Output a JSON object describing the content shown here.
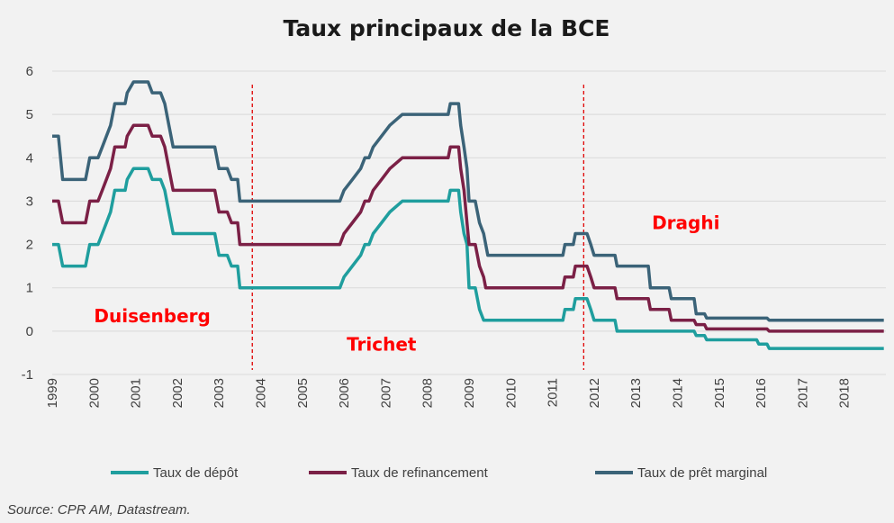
{
  "chart_data": {
    "type": "line",
    "title": "Taux principaux de la BCE",
    "source": "Source: CPR AM, Datastream.",
    "ylim": [
      -1,
      6
    ],
    "yticks": [
      -1,
      0,
      1,
      2,
      3,
      4,
      5,
      6
    ],
    "xlim": [
      1999,
      2019
    ],
    "xticks": [
      "1999",
      "2000",
      "2001",
      "2002",
      "2003",
      "2004",
      "2005",
      "2006",
      "2007",
      "2008",
      "2009",
      "2010",
      "2011",
      "2012",
      "2013",
      "2014",
      "2015",
      "2016",
      "2017",
      "2018"
    ],
    "grid": true,
    "legend_position": "bottom",
    "series": [
      {
        "name": "Taux de dépôt",
        "color": "#1f9e9e",
        "points": [
          [
            1999.0,
            2.0
          ],
          [
            1999.15,
            2.0
          ],
          [
            1999.25,
            1.5
          ],
          [
            1999.8,
            1.5
          ],
          [
            1999.9,
            2.0
          ],
          [
            2000.1,
            2.0
          ],
          [
            2000.2,
            2.25
          ],
          [
            2000.3,
            2.5
          ],
          [
            2000.4,
            2.75
          ],
          [
            2000.5,
            3.25
          ],
          [
            2000.75,
            3.25
          ],
          [
            2000.8,
            3.5
          ],
          [
            2000.95,
            3.75
          ],
          [
            2001.3,
            3.75
          ],
          [
            2001.4,
            3.5
          ],
          [
            2001.6,
            3.5
          ],
          [
            2001.7,
            3.25
          ],
          [
            2001.8,
            2.75
          ],
          [
            2001.9,
            2.25
          ],
          [
            2002.9,
            2.25
          ],
          [
            2003.0,
            1.75
          ],
          [
            2003.2,
            1.75
          ],
          [
            2003.3,
            1.5
          ],
          [
            2003.45,
            1.5
          ],
          [
            2003.5,
            1.0
          ],
          [
            2005.9,
            1.0
          ],
          [
            2006.0,
            1.25
          ],
          [
            2006.2,
            1.5
          ],
          [
            2006.4,
            1.75
          ],
          [
            2006.5,
            2.0
          ],
          [
            2006.6,
            2.0
          ],
          [
            2006.7,
            2.25
          ],
          [
            2006.9,
            2.5
          ],
          [
            2007.1,
            2.75
          ],
          [
            2007.4,
            3.0
          ],
          [
            2008.5,
            3.0
          ],
          [
            2008.55,
            3.25
          ],
          [
            2008.75,
            3.25
          ],
          [
            2008.8,
            2.75
          ],
          [
            2008.88,
            2.25
          ],
          [
            2008.95,
            2.0
          ],
          [
            2009.0,
            1.0
          ],
          [
            2009.15,
            1.0
          ],
          [
            2009.25,
            0.5
          ],
          [
            2009.35,
            0.25
          ],
          [
            2011.25,
            0.25
          ],
          [
            2011.3,
            0.5
          ],
          [
            2011.5,
            0.5
          ],
          [
            2011.55,
            0.75
          ],
          [
            2011.83,
            0.75
          ],
          [
            2011.92,
            0.5
          ],
          [
            2012.0,
            0.25
          ],
          [
            2012.5,
            0.25
          ],
          [
            2012.55,
            0.0
          ],
          [
            2014.4,
            0.0
          ],
          [
            2014.45,
            -0.1
          ],
          [
            2014.65,
            -0.1
          ],
          [
            2014.7,
            -0.2
          ],
          [
            2015.9,
            -0.2
          ],
          [
            2015.95,
            -0.3
          ],
          [
            2016.15,
            -0.3
          ],
          [
            2016.2,
            -0.4
          ],
          [
            2018.95,
            -0.4
          ]
        ]
      },
      {
        "name": "Taux de refinancement",
        "color": "#7b2046",
        "points": [
          [
            1999.0,
            3.0
          ],
          [
            1999.15,
            3.0
          ],
          [
            1999.25,
            2.5
          ],
          [
            1999.8,
            2.5
          ],
          [
            1999.9,
            3.0
          ],
          [
            2000.1,
            3.0
          ],
          [
            2000.2,
            3.25
          ],
          [
            2000.3,
            3.5
          ],
          [
            2000.4,
            3.75
          ],
          [
            2000.5,
            4.25
          ],
          [
            2000.75,
            4.25
          ],
          [
            2000.8,
            4.5
          ],
          [
            2000.95,
            4.75
          ],
          [
            2001.3,
            4.75
          ],
          [
            2001.4,
            4.5
          ],
          [
            2001.6,
            4.5
          ],
          [
            2001.7,
            4.25
          ],
          [
            2001.8,
            3.75
          ],
          [
            2001.9,
            3.25
          ],
          [
            2002.9,
            3.25
          ],
          [
            2003.0,
            2.75
          ],
          [
            2003.2,
            2.75
          ],
          [
            2003.3,
            2.5
          ],
          [
            2003.45,
            2.5
          ],
          [
            2003.5,
            2.0
          ],
          [
            2005.9,
            2.0
          ],
          [
            2006.0,
            2.25
          ],
          [
            2006.2,
            2.5
          ],
          [
            2006.4,
            2.75
          ],
          [
            2006.5,
            3.0
          ],
          [
            2006.6,
            3.0
          ],
          [
            2006.7,
            3.25
          ],
          [
            2006.9,
            3.5
          ],
          [
            2007.1,
            3.75
          ],
          [
            2007.4,
            4.0
          ],
          [
            2008.5,
            4.0
          ],
          [
            2008.55,
            4.25
          ],
          [
            2008.75,
            4.25
          ],
          [
            2008.8,
            3.75
          ],
          [
            2008.88,
            3.25
          ],
          [
            2008.95,
            2.5
          ],
          [
            2009.0,
            2.0
          ],
          [
            2009.15,
            2.0
          ],
          [
            2009.25,
            1.5
          ],
          [
            2009.35,
            1.25
          ],
          [
            2009.4,
            1.0
          ],
          [
            2011.25,
            1.0
          ],
          [
            2011.3,
            1.25
          ],
          [
            2011.5,
            1.25
          ],
          [
            2011.55,
            1.5
          ],
          [
            2011.83,
            1.5
          ],
          [
            2011.92,
            1.25
          ],
          [
            2012.0,
            1.0
          ],
          [
            2012.5,
            1.0
          ],
          [
            2012.55,
            0.75
          ],
          [
            2013.3,
            0.75
          ],
          [
            2013.35,
            0.5
          ],
          [
            2013.8,
            0.5
          ],
          [
            2013.85,
            0.25
          ],
          [
            2014.4,
            0.25
          ],
          [
            2014.45,
            0.15
          ],
          [
            2014.65,
            0.15
          ],
          [
            2014.7,
            0.05
          ],
          [
            2016.15,
            0.05
          ],
          [
            2016.2,
            0.0
          ],
          [
            2018.95,
            0.0
          ]
        ]
      },
      {
        "name": "Taux de prêt marginal",
        "color": "#3b6378",
        "points": [
          [
            1999.0,
            4.5
          ],
          [
            1999.15,
            4.5
          ],
          [
            1999.25,
            3.5
          ],
          [
            1999.8,
            3.5
          ],
          [
            1999.9,
            4.0
          ],
          [
            2000.1,
            4.0
          ],
          [
            2000.2,
            4.25
          ],
          [
            2000.3,
            4.5
          ],
          [
            2000.4,
            4.75
          ],
          [
            2000.5,
            5.25
          ],
          [
            2000.75,
            5.25
          ],
          [
            2000.8,
            5.5
          ],
          [
            2000.95,
            5.75
          ],
          [
            2001.3,
            5.75
          ],
          [
            2001.4,
            5.5
          ],
          [
            2001.6,
            5.5
          ],
          [
            2001.7,
            5.25
          ],
          [
            2001.8,
            4.75
          ],
          [
            2001.9,
            4.25
          ],
          [
            2002.9,
            4.25
          ],
          [
            2003.0,
            3.75
          ],
          [
            2003.2,
            3.75
          ],
          [
            2003.3,
            3.5
          ],
          [
            2003.45,
            3.5
          ],
          [
            2003.5,
            3.0
          ],
          [
            2005.9,
            3.0
          ],
          [
            2006.0,
            3.25
          ],
          [
            2006.2,
            3.5
          ],
          [
            2006.4,
            3.75
          ],
          [
            2006.5,
            4.0
          ],
          [
            2006.6,
            4.0
          ],
          [
            2006.7,
            4.25
          ],
          [
            2006.9,
            4.5
          ],
          [
            2007.1,
            4.75
          ],
          [
            2007.4,
            5.0
          ],
          [
            2008.5,
            5.0
          ],
          [
            2008.55,
            5.25
          ],
          [
            2008.75,
            5.25
          ],
          [
            2008.8,
            4.75
          ],
          [
            2008.88,
            4.25
          ],
          [
            2008.95,
            3.75
          ],
          [
            2009.0,
            3.0
          ],
          [
            2009.15,
            3.0
          ],
          [
            2009.25,
            2.5
          ],
          [
            2009.35,
            2.25
          ],
          [
            2009.45,
            1.75
          ],
          [
            2011.25,
            1.75
          ],
          [
            2011.3,
            2.0
          ],
          [
            2011.5,
            2.0
          ],
          [
            2011.55,
            2.25
          ],
          [
            2011.83,
            2.25
          ],
          [
            2011.92,
            2.0
          ],
          [
            2012.0,
            1.75
          ],
          [
            2012.5,
            1.75
          ],
          [
            2012.55,
            1.5
          ],
          [
            2013.3,
            1.5
          ],
          [
            2013.35,
            1.0
          ],
          [
            2013.8,
            1.0
          ],
          [
            2013.85,
            0.75
          ],
          [
            2014.4,
            0.75
          ],
          [
            2014.45,
            0.4
          ],
          [
            2014.65,
            0.4
          ],
          [
            2014.7,
            0.3
          ],
          [
            2016.15,
            0.3
          ],
          [
            2016.2,
            0.25
          ],
          [
            2018.95,
            0.25
          ]
        ]
      }
    ],
    "dividers": [
      2003.8,
      2011.75
    ],
    "divider_color": "#e00000",
    "annotations": [
      {
        "text": "Duisenberg",
        "x": 2001.4,
        "y": 0.2
      },
      {
        "text": "Trichet",
        "x": 2006.9,
        "y": -0.45
      },
      {
        "text": "Draghi",
        "x": 2014.2,
        "y": 2.35
      }
    ]
  }
}
